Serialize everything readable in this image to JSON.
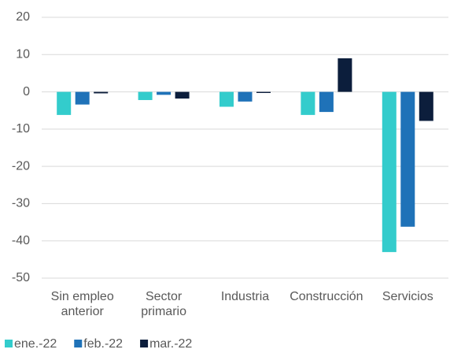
{
  "chart_data": {
    "type": "bar",
    "categories": [
      "Sin empleo anterior",
      "Sector primario",
      "Industria",
      "Construcción",
      "Servicios"
    ],
    "series": [
      {
        "name": "ene.-22",
        "color": "#33cccc",
        "values": [
          -6.2,
          -2.2,
          -4.0,
          -6.2,
          -43.0
        ]
      },
      {
        "name": "feb.-22",
        "color": "#1f72b8",
        "values": [
          -3.4,
          -0.8,
          -2.6,
          -5.4,
          -36.2
        ]
      },
      {
        "name": "mar.-22",
        "color": "#0c1e3c",
        "values": [
          -0.4,
          -1.8,
          -0.3,
          9.0,
          -7.8
        ]
      }
    ],
    "ylim": [
      -50,
      20
    ],
    "yticks": [
      -50,
      -40,
      -30,
      -20,
      -10,
      0,
      10,
      20
    ],
    "grid": true,
    "legend": "bottom-left"
  }
}
